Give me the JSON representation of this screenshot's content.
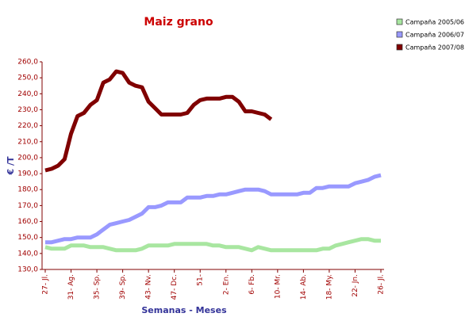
{
  "chart_data": {
    "type": "line",
    "title": "Maiz grano",
    "x_label": "Semanas - Meses",
    "y_label": "€ /T",
    "categories": [
      "27- Jl.",
      null,
      null,
      null,
      "31- Ag.",
      null,
      null,
      null,
      "35- Sp.",
      null,
      null,
      null,
      "39- Sp.",
      null,
      null,
      null,
      "43- Nv.",
      null,
      null,
      null,
      "47- Dc.",
      null,
      null,
      null,
      "51-",
      null,
      null,
      null,
      "2- En.",
      null,
      null,
      null,
      "6- Fb.",
      null,
      null,
      null,
      "10- Mr.",
      null,
      null,
      null,
      "14- Ab.",
      null,
      null,
      null,
      "18- My.",
      null,
      null,
      null,
      "22- Jn.",
      null,
      null,
      null,
      "26- Jl."
    ],
    "series": [
      {
        "name": "Campaña 2005/06",
        "color": "#a8e6a0",
        "values": [
          144,
          143,
          143,
          143,
          145,
          145,
          145,
          144,
          144,
          144,
          143,
          142,
          142,
          142,
          142,
          143,
          145,
          145,
          145,
          145,
          146,
          146,
          146,
          146,
          146,
          146,
          145,
          145,
          144,
          144,
          144,
          143,
          142,
          144,
          143,
          142,
          142,
          142,
          142,
          142,
          142,
          142,
          142,
          143,
          143,
          145,
          146,
          147,
          148,
          149,
          149,
          148,
          148
        ]
      },
      {
        "name": "Campaña 2006/07",
        "color": "#9999ff",
        "values": [
          147,
          147,
          148,
          149,
          149,
          150,
          150,
          150,
          152,
          155,
          158,
          159,
          160,
          161,
          163,
          165,
          169,
          169,
          170,
          172,
          172,
          172,
          175,
          175,
          175,
          176,
          176,
          177,
          177,
          178,
          179,
          180,
          180,
          180,
          179,
          177,
          177,
          177,
          177,
          177,
          178,
          178,
          181,
          181,
          182,
          182,
          182,
          182,
          184,
          185,
          186,
          188,
          189
        ]
      },
      {
        "name": "Campaña 2007/08",
        "color": "#800000",
        "values": [
          192,
          193,
          195,
          199,
          215,
          226,
          228,
          233,
          236,
          247,
          249,
          254,
          253,
          247,
          245,
          244,
          235,
          231,
          227,
          227,
          227,
          227,
          228,
          233,
          236,
          237,
          237,
          237,
          238,
          238,
          235,
          229,
          229,
          228,
          227,
          224,
          null,
          null,
          null,
          null,
          null,
          null,
          null,
          null,
          null,
          null,
          null,
          null,
          null,
          null,
          null,
          null,
          null
        ]
      }
    ],
    "ylim": [
      130,
      260
    ],
    "yticks": [
      {
        "value": 130,
        "label": "130,0"
      },
      {
        "value": 140,
        "label": "140,0"
      },
      {
        "value": 150,
        "label": "150,0"
      },
      {
        "value": 160,
        "label": "160,0"
      },
      {
        "value": 170,
        "label": "170,0"
      },
      {
        "value": 180,
        "label": "180,0"
      },
      {
        "value": 190,
        "label": "190,0"
      },
      {
        "value": 200,
        "label": "200,0"
      },
      {
        "value": 210,
        "label": "210,0"
      },
      {
        "value": 220,
        "label": "220,0"
      },
      {
        "value": 230,
        "label": "230,0"
      },
      {
        "value": 240,
        "label": "240,0"
      },
      {
        "value": 250,
        "label": "250,0"
      },
      {
        "value": 260,
        "label": "260,0"
      }
    ],
    "legend": "top-right",
    "grid": false
  }
}
